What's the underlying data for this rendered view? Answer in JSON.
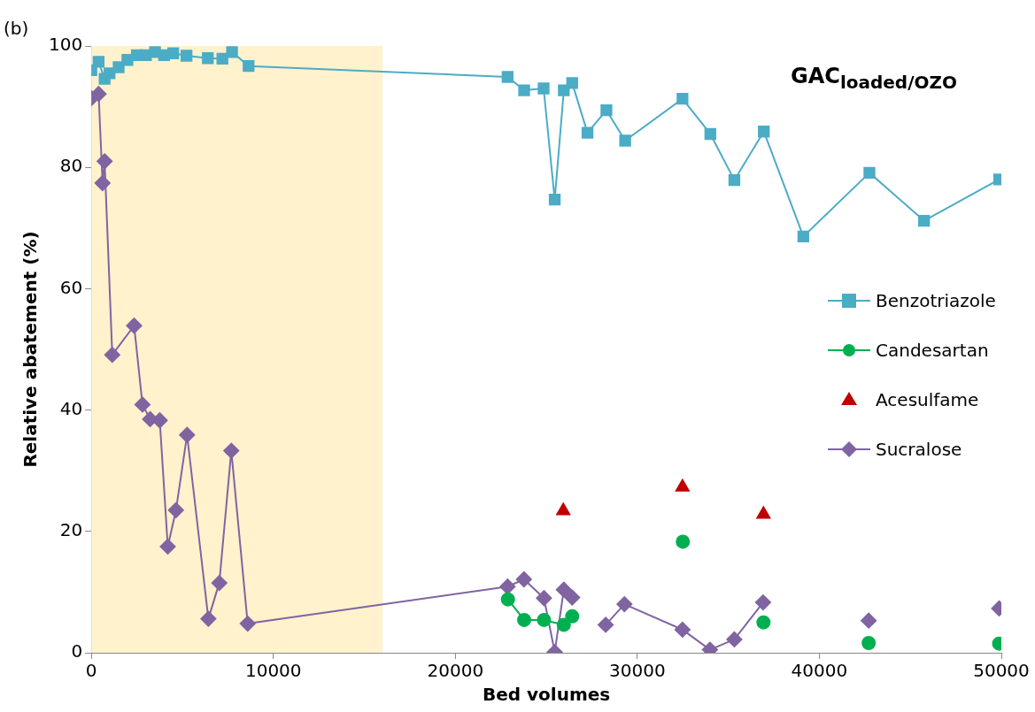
{
  "chart_data": {
    "type": "line",
    "xlabel": "Bed volumes",
    "ylabel": "Relative abatement (%)",
    "annotations": [
      "(b)",
      "GAC$_{loaded/OZO}$"
    ],
    "xlim": [
      0,
      50000
    ],
    "xticks": [
      0,
      10000,
      20000,
      30000,
      40000,
      50000
    ],
    "ylim": [
      0,
      100
    ],
    "yticks": [
      0,
      20,
      40,
      60,
      80,
      100
    ],
    "grid": false,
    "legend": "right",
    "line_style": "solid",
    "bands": [
      {
        "axis": "x",
        "from": 0,
        "to": 16000,
        "color": "#fff2cc"
      }
    ],
    "series": [
      {
        "name": "Benzotriazole",
        "color": "#4bacc6",
        "marker": "square",
        "x": [
          0,
          400,
          730,
          1000,
          1500,
          1980,
          2500,
          3000,
          3500,
          4000,
          4500,
          5230,
          6400,
          7200,
          7730,
          8640,
          22870,
          23780,
          24850,
          25460,
          25960,
          26420,
          27260,
          28300,
          29330,
          32480,
          34010,
          35330,
          36950,
          39120,
          42750,
          45750,
          49880
        ],
        "values": [
          96,
          97.4,
          94.6,
          95.5,
          96.5,
          97.7,
          98.5,
          98.5,
          99,
          98.5,
          98.8,
          98.4,
          98,
          97.9,
          99,
          96.7,
          94.9,
          92.7,
          93,
          74.7,
          92.7,
          93.9,
          85.7,
          89.4,
          84.4,
          91.3,
          85.5,
          77.9,
          85.9,
          68.6,
          79.1,
          71.2,
          78
        ]
      },
      {
        "name": "Candesartan",
        "color": "#00b050",
        "marker": "circle",
        "x": [
          22890,
          23780,
          24870,
          25960,
          26420,
          27260,
          29330,
          32500,
          34010,
          36930,
          39120,
          42710,
          45750,
          49880
        ],
        "values": [
          8.8,
          5.4,
          5.4,
          4.6,
          6,
          null,
          null,
          18.3,
          null,
          5,
          null,
          1.6,
          null,
          1.5
        ]
      },
      {
        "name": "Acesulfame",
        "type": "scatter",
        "color": "#c00000",
        "marker": "triangle",
        "x": [
          25930,
          32480,
          36930
        ],
        "values": [
          23.4,
          27.3,
          22.8
        ]
      },
      {
        "name": "Sucralose",
        "color": "#8064a2",
        "marker": "diamond",
        "x": [
          0,
          400,
          615,
          730,
          1150,
          2350,
          2810,
          3230,
          3760,
          4200,
          4650,
          5260,
          6430,
          7030,
          7690,
          8590,
          22870,
          23770,
          24870,
          25460,
          25960,
          26420,
          27260,
          28260,
          29290,
          32480,
          33990,
          35330,
          36910,
          39120,
          42710,
          45750,
          49880
        ],
        "values": [
          91.4,
          92.1,
          77.4,
          81,
          49.1,
          53.9,
          40.9,
          38.5,
          38.3,
          17.5,
          23.5,
          35.9,
          5.6,
          11.5,
          33.3,
          4.8,
          10.9,
          12.1,
          9,
          0.1,
          10.4,
          9.1,
          null,
          4.6,
          8,
          3.8,
          0.5,
          2.2,
          8.3,
          null,
          5.3,
          null,
          7.3
        ]
      }
    ]
  }
}
